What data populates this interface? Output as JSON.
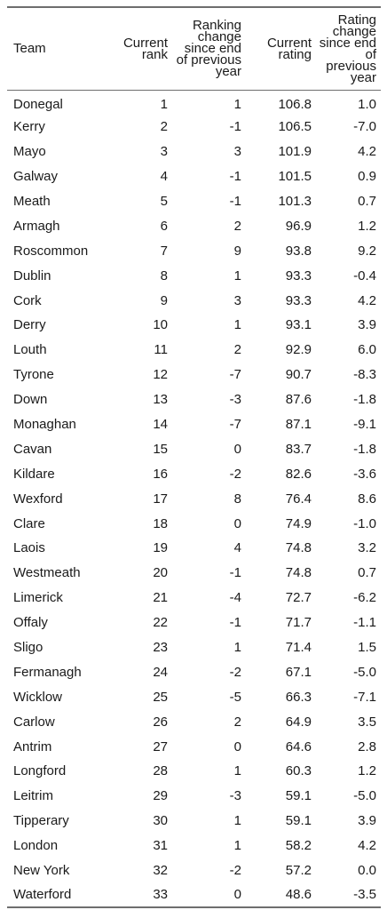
{
  "columns": [
    "Team",
    "Current rank",
    "Ranking change since end of previous year",
    "Current rating",
    "Rating change since end of previous year"
  ],
  "rows": [
    {
      "team": "Donegal",
      "rank": "1",
      "rank_change": "1",
      "rating": "106.8",
      "rating_change": "1.0"
    },
    {
      "team": "Kerry",
      "rank": "2",
      "rank_change": "-1",
      "rating": "106.5",
      "rating_change": "-7.0"
    },
    {
      "team": "Mayo",
      "rank": "3",
      "rank_change": "3",
      "rating": "101.9",
      "rating_change": "4.2"
    },
    {
      "team": "Galway",
      "rank": "4",
      "rank_change": "-1",
      "rating": "101.5",
      "rating_change": "0.9"
    },
    {
      "team": "Meath",
      "rank": "5",
      "rank_change": "-1",
      "rating": "101.3",
      "rating_change": "0.7"
    },
    {
      "team": "Armagh",
      "rank": "6",
      "rank_change": "2",
      "rating": "96.9",
      "rating_change": "1.2"
    },
    {
      "team": "Roscommon",
      "rank": "7",
      "rank_change": "9",
      "rating": "93.8",
      "rating_change": "9.2"
    },
    {
      "team": "Dublin",
      "rank": "8",
      "rank_change": "1",
      "rating": "93.3",
      "rating_change": "-0.4"
    },
    {
      "team": "Cork",
      "rank": "9",
      "rank_change": "3",
      "rating": "93.3",
      "rating_change": "4.2"
    },
    {
      "team": "Derry",
      "rank": "10",
      "rank_change": "1",
      "rating": "93.1",
      "rating_change": "3.9"
    },
    {
      "team": "Louth",
      "rank": "11",
      "rank_change": "2",
      "rating": "92.9",
      "rating_change": "6.0"
    },
    {
      "team": "Tyrone",
      "rank": "12",
      "rank_change": "-7",
      "rating": "90.7",
      "rating_change": "-8.3"
    },
    {
      "team": "Down",
      "rank": "13",
      "rank_change": "-3",
      "rating": "87.6",
      "rating_change": "-1.8"
    },
    {
      "team": "Monaghan",
      "rank": "14",
      "rank_change": "-7",
      "rating": "87.1",
      "rating_change": "-9.1"
    },
    {
      "team": "Cavan",
      "rank": "15",
      "rank_change": "0",
      "rating": "83.7",
      "rating_change": "-1.8"
    },
    {
      "team": "Kildare",
      "rank": "16",
      "rank_change": "-2",
      "rating": "82.6",
      "rating_change": "-3.6"
    },
    {
      "team": "Wexford",
      "rank": "17",
      "rank_change": "8",
      "rating": "76.4",
      "rating_change": "8.6"
    },
    {
      "team": "Clare",
      "rank": "18",
      "rank_change": "0",
      "rating": "74.9",
      "rating_change": "-1.0"
    },
    {
      "team": "Laois",
      "rank": "19",
      "rank_change": "4",
      "rating": "74.8",
      "rating_change": "3.2"
    },
    {
      "team": "Westmeath",
      "rank": "20",
      "rank_change": "-1",
      "rating": "74.8",
      "rating_change": "0.7"
    },
    {
      "team": "Limerick",
      "rank": "21",
      "rank_change": "-4",
      "rating": "72.7",
      "rating_change": "-6.2"
    },
    {
      "team": "Offaly",
      "rank": "22",
      "rank_change": "-1",
      "rating": "71.7",
      "rating_change": "-1.1"
    },
    {
      "team": "Sligo",
      "rank": "23",
      "rank_change": "1",
      "rating": "71.4",
      "rating_change": "1.5"
    },
    {
      "team": "Fermanagh",
      "rank": "24",
      "rank_change": "-2",
      "rating": "67.1",
      "rating_change": "-5.0"
    },
    {
      "team": "Wicklow",
      "rank": "25",
      "rank_change": "-5",
      "rating": "66.3",
      "rating_change": "-7.1"
    },
    {
      "team": "Carlow",
      "rank": "26",
      "rank_change": "2",
      "rating": "64.9",
      "rating_change": "3.5"
    },
    {
      "team": "Antrim",
      "rank": "27",
      "rank_change": "0",
      "rating": "64.6",
      "rating_change": "2.8"
    },
    {
      "team": "Longford",
      "rank": "28",
      "rank_change": "1",
      "rating": "60.3",
      "rating_change": "1.2"
    },
    {
      "team": "Leitrim",
      "rank": "29",
      "rank_change": "-3",
      "rating": "59.1",
      "rating_change": "-5.0"
    },
    {
      "team": "Tipperary",
      "rank": "30",
      "rank_change": "1",
      "rating": "59.1",
      "rating_change": "3.9"
    },
    {
      "team": "London",
      "rank": "31",
      "rank_change": "1",
      "rating": "58.2",
      "rating_change": "4.2"
    },
    {
      "team": "New York",
      "rank": "32",
      "rank_change": "-2",
      "rating": "57.2",
      "rating_change": "0.0"
    },
    {
      "team": "Waterford",
      "rank": "33",
      "rank_change": "0",
      "rating": "48.6",
      "rating_change": "-3.5"
    }
  ],
  "colors": {
    "rule": "#6e6e6e",
    "text": "#1a1a1a",
    "background": "#ffffff"
  }
}
